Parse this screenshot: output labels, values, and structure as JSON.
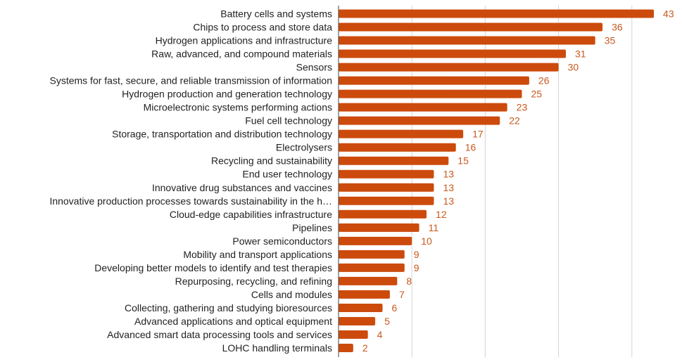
{
  "chart_data": {
    "type": "bar",
    "orientation": "horizontal",
    "title": "",
    "xlabel": "",
    "ylabel": "",
    "xlim": [
      0,
      45
    ],
    "grid": true,
    "categories": [
      "Battery cells and systems",
      "Chips to process and store data",
      "Hydrogen applications and infrastructure",
      "Raw, advanced, and compound materials",
      "Sensors",
      "Systems for fast, secure, and reliable transmission of information",
      "Hydrogen production and generation technology",
      "Microelectronic systems performing actions",
      "Fuel cell technology",
      "Storage, transportation and distribution technology",
      "Electrolysers",
      "Recycling and sustainability",
      "End user technology",
      "Innovative drug substances and vaccines",
      "Innovative production processes towards sustainability in the h…",
      "Cloud-edge capabilities infrastructure",
      "Pipelines",
      "Power semiconductors",
      "Mobility and transport applications",
      "Developing better models to identify and test therapies",
      "Repurposing, recycling, and refining",
      "Cells and modules",
      "Collecting, gathering and studying bioresources",
      "Advanced applications and optical equipment",
      "Advanced smart data processing tools and services",
      "LOHC handling terminals"
    ],
    "values": [
      43,
      36,
      35,
      31,
      30,
      26,
      25,
      23,
      22,
      17,
      16,
      15,
      13,
      13,
      13,
      12,
      11,
      10,
      9,
      9,
      8,
      7,
      6,
      5,
      4,
      2
    ],
    "bar_color": "#cc4b0c",
    "value_label_color": "#c9581e",
    "grid_color": "#d4d4d4",
    "axis_color": "#444444"
  }
}
